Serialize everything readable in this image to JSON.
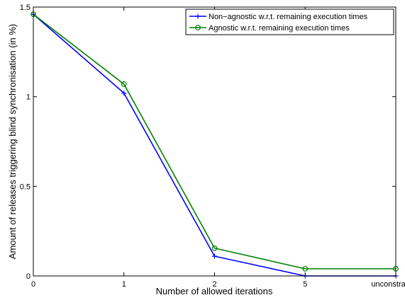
{
  "chart_data": {
    "type": "line",
    "title": "",
    "xlabel": "Number of allowed iterations",
    "ylabel": "Amount of releases triggering blind synchronisation (in %)",
    "categories": [
      "0",
      "1",
      "2",
      "5",
      "unconstrained"
    ],
    "yticks": [
      "0",
      "0.5",
      "1",
      "1.5"
    ],
    "ylim": [
      0,
      1.5
    ],
    "grid": false,
    "legend_position": "top-right",
    "series": [
      {
        "name": "Non−agnostic w.r.t. remaining execution times",
        "color": "#0000ff",
        "marker": "plus",
        "values": [
          1.46,
          1.02,
          0.11,
          0.0,
          0.0
        ]
      },
      {
        "name": "Agnostic w.r.t. remaining execution times",
        "color": "#008000",
        "marker": "circle",
        "values": [
          1.46,
          1.07,
          0.155,
          0.04,
          0.04
        ]
      }
    ]
  }
}
